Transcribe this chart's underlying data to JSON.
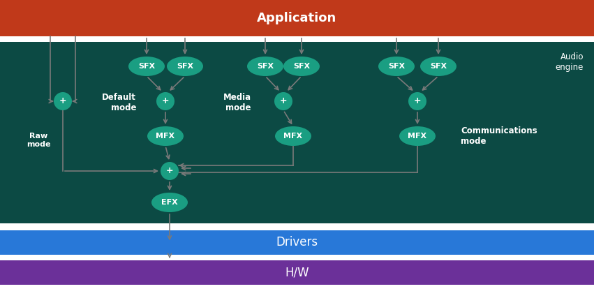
{
  "bg_color": "#0c4a44",
  "app_color": "#c0391a",
  "drivers_color": "#2878d8",
  "hw_color": "#6b3099",
  "teal": "#1a9e82",
  "arrow_color": "#7a7a7a",
  "white": "#ffffff",
  "app_label": "Application",
  "engine_label": "Audio\nengine",
  "drivers_label": "Drivers",
  "hw_label": "H/W",
  "raw_mode": "Raw\nmode",
  "default_mode": "Default\nmode",
  "media_mode": "Media\nmode",
  "comm_mode": "Communications\nmode",
  "fig_w": 8.51,
  "fig_h": 4.37,
  "dpi": 100
}
